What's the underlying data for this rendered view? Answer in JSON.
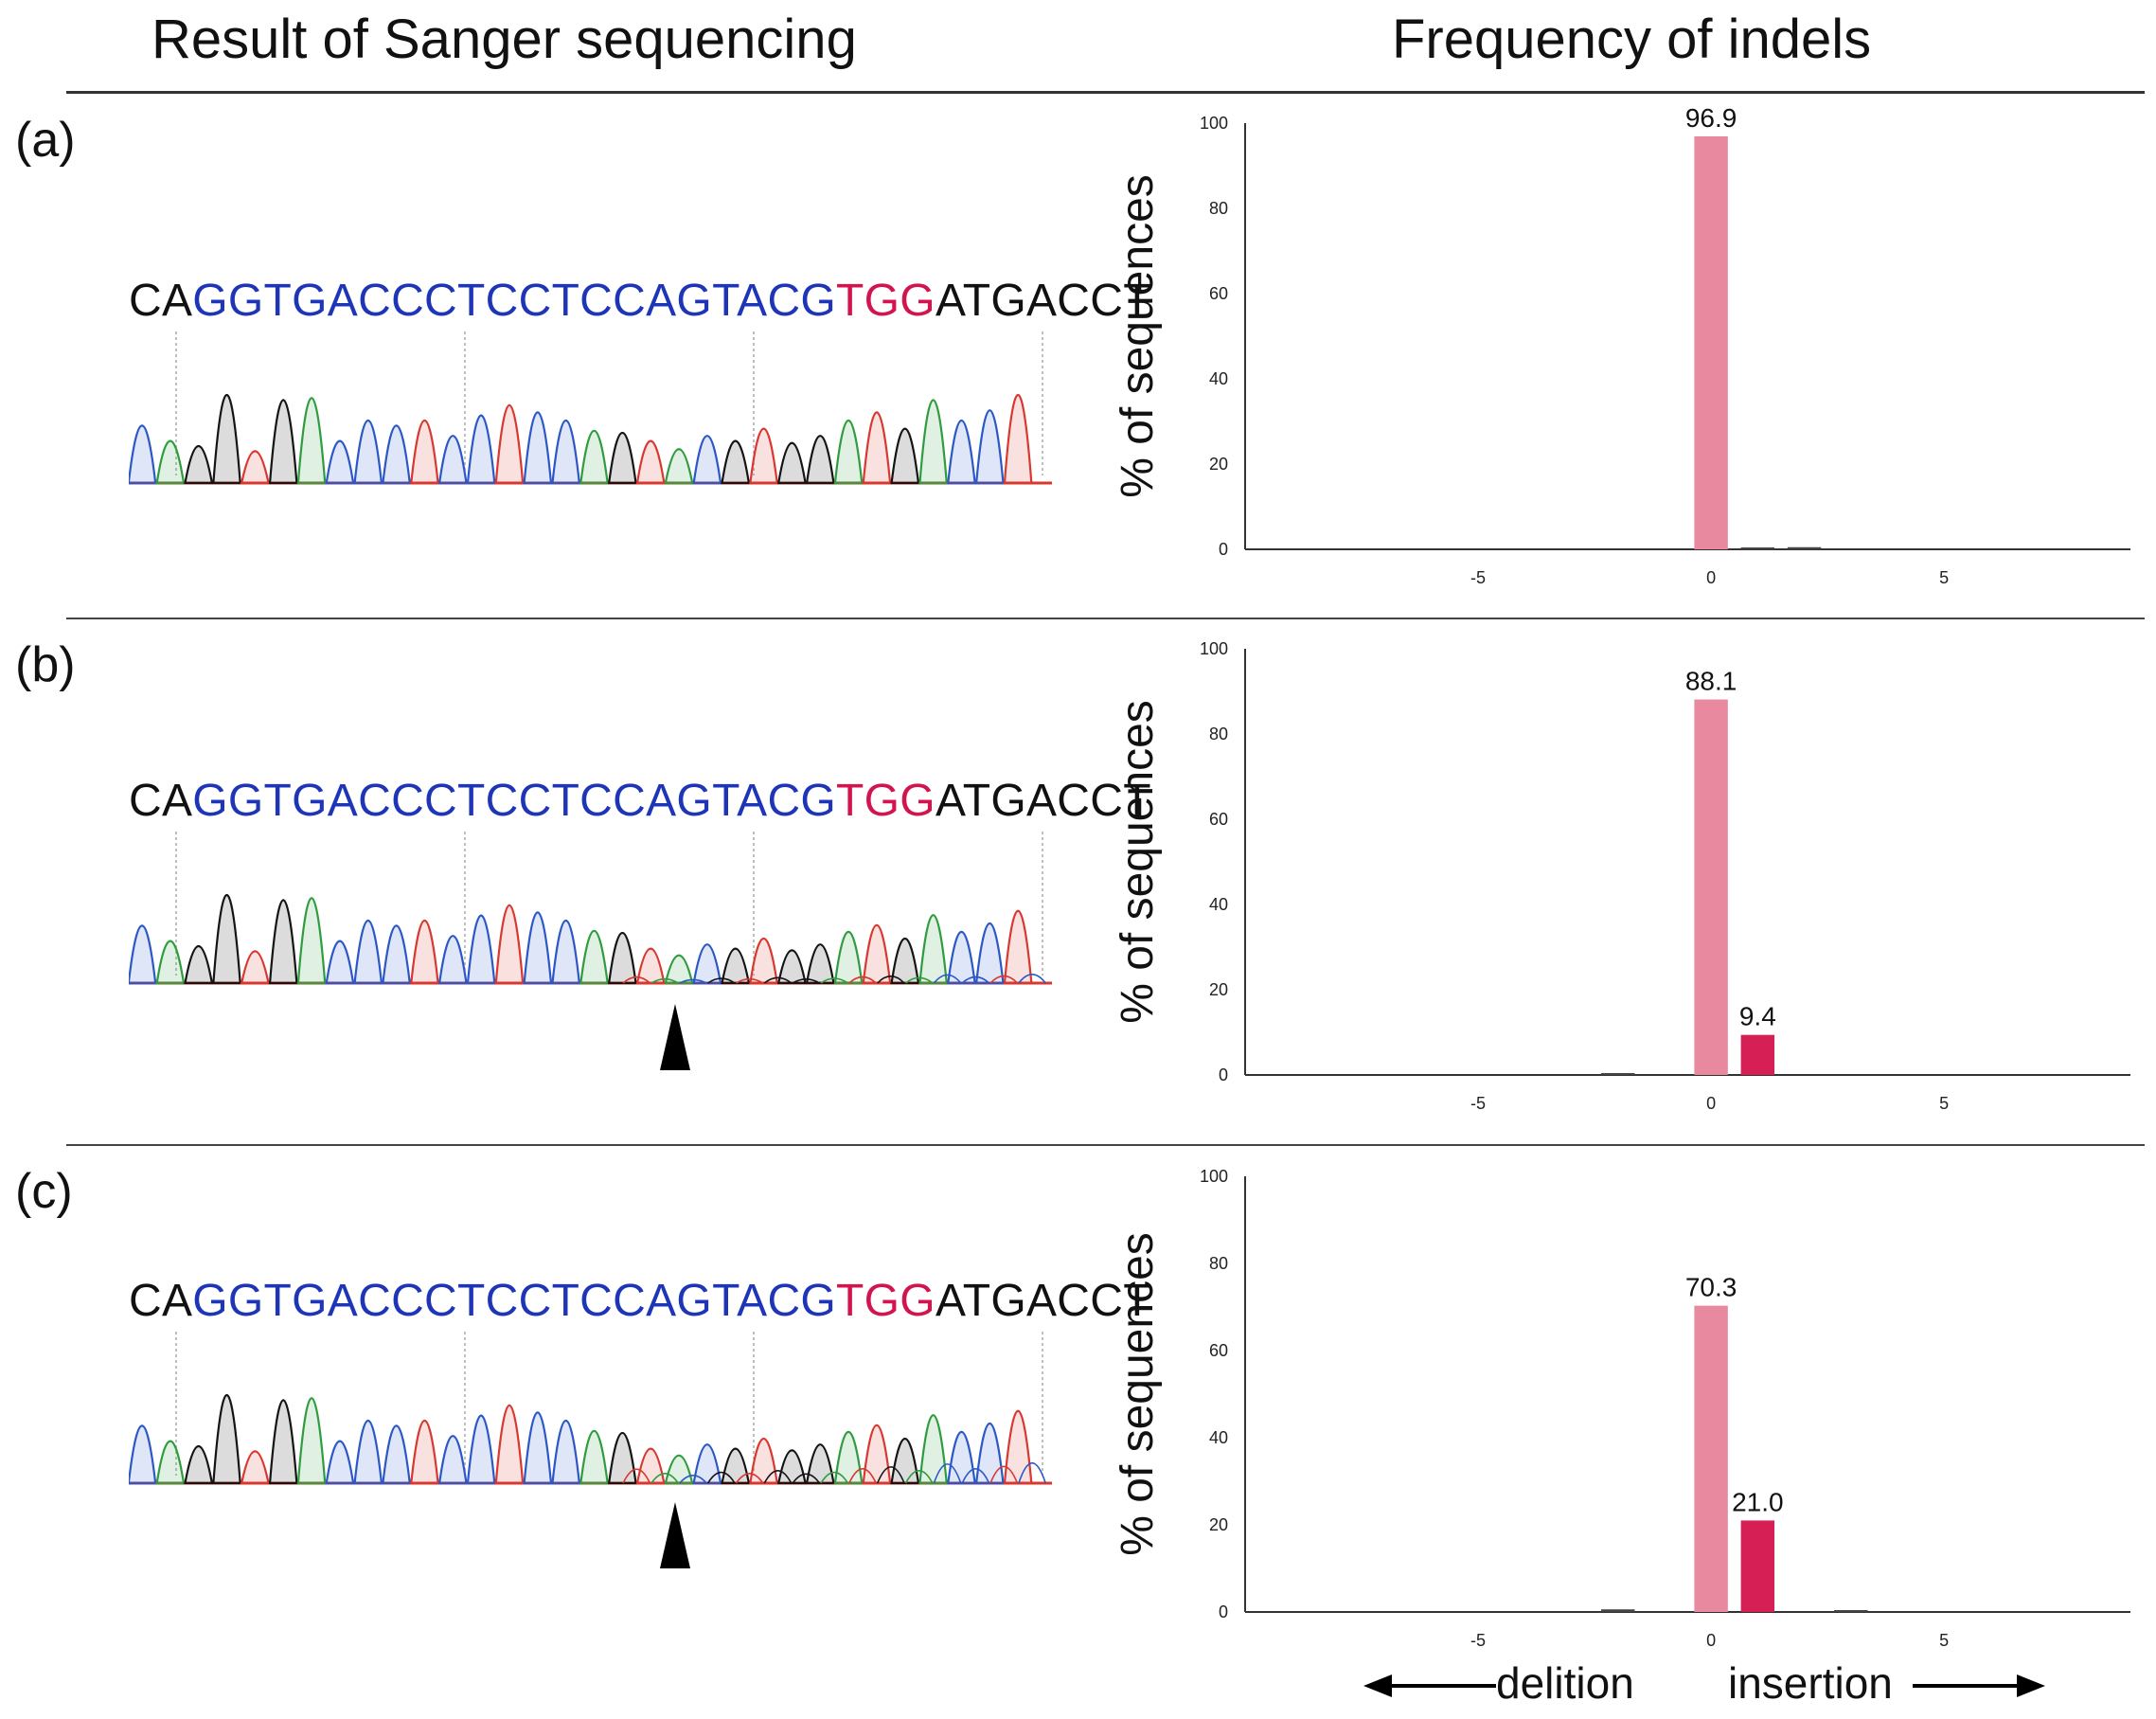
{
  "header": {
    "left_title": "Result of Sanger sequencing",
    "right_title": "Frequency of indels"
  },
  "sequence": {
    "prefix": "CA",
    "target": "GGTGACCCTCCTCCAGTACG",
    "pam": "TGG",
    "suffix": "ATGACCT"
  },
  "colors": {
    "base_a": "#2f9c3f",
    "base_c": "#2b58c6",
    "base_g": "#141414",
    "base_t": "#d8382f",
    "bar_wt": "#e8899f",
    "bar_ins": "#d61f55",
    "bar_minor": "#444444"
  },
  "panels": [
    {
      "label": "(a)"
    },
    {
      "label": "(b)"
    },
    {
      "label": "(c)"
    }
  ],
  "legend": {
    "deletion": "delition",
    "insertion": "insertion"
  },
  "chart_data": [
    {
      "type": "bar",
      "panel": "(a)",
      "title": "",
      "xlabel": "",
      "ylabel": "% of sequences",
      "xlim": [
        -10,
        9
      ],
      "ylim": [
        0,
        100
      ],
      "xticks": [
        -5,
        0,
        5
      ],
      "yticks": [
        0,
        20,
        40,
        60,
        80,
        100
      ],
      "bars": [
        {
          "x": 0,
          "value": 96.9,
          "label": "96.9",
          "kind": "wt"
        },
        {
          "x": 1,
          "value": 0.3,
          "label": "",
          "kind": "minor"
        },
        {
          "x": 2,
          "value": 0.5,
          "label": "",
          "kind": "minor"
        }
      ]
    },
    {
      "type": "bar",
      "panel": "(b)",
      "title": "",
      "xlabel": "",
      "ylabel": "% of sequences",
      "xlim": [
        -10,
        9
      ],
      "ylim": [
        0,
        100
      ],
      "xticks": [
        -5,
        0,
        5
      ],
      "yticks": [
        0,
        20,
        40,
        60,
        80,
        100
      ],
      "bars": [
        {
          "x": -2,
          "value": 0.4,
          "label": "",
          "kind": "minor"
        },
        {
          "x": 0,
          "value": 88.1,
          "label": "88.1",
          "kind": "wt"
        },
        {
          "x": 1,
          "value": 9.4,
          "label": "9.4",
          "kind": "ins"
        }
      ]
    },
    {
      "type": "bar",
      "panel": "(c)",
      "title": "",
      "xlabel": "",
      "ylabel": "% of sequences",
      "xlim": [
        -10,
        9
      ],
      "ylim": [
        0,
        100
      ],
      "xticks": [
        -5,
        0,
        5
      ],
      "yticks": [
        0,
        20,
        40,
        60,
        80,
        100
      ],
      "bars": [
        {
          "x": -2,
          "value": 0.6,
          "label": "",
          "kind": "minor"
        },
        {
          "x": 0,
          "value": 70.3,
          "label": "70.3",
          "kind": "wt"
        },
        {
          "x": 1,
          "value": 21.0,
          "label": "21.0",
          "kind": "ins"
        },
        {
          "x": 3,
          "value": 0.3,
          "label": "",
          "kind": "minor"
        }
      ]
    }
  ]
}
